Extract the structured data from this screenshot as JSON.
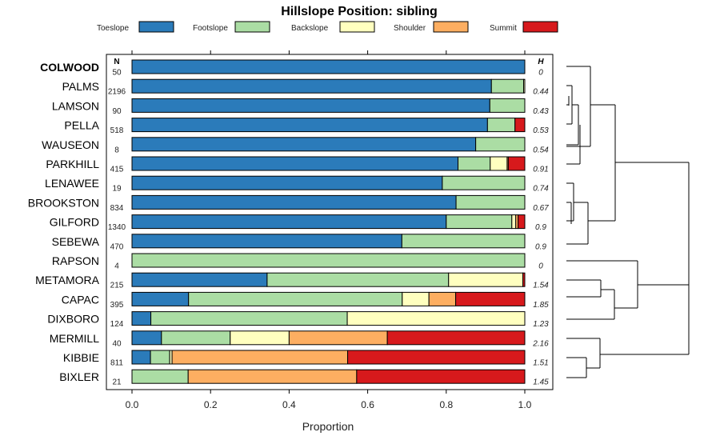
{
  "chart_data": {
    "type": "bar",
    "stacked": true,
    "orientation": "horizontal",
    "title": "Hillslope Position: sibling",
    "xlabel": "Proportion",
    "xlim": [
      0,
      1
    ],
    "x_ticks": [
      "0.0",
      "0.2",
      "0.4",
      "0.6",
      "0.8",
      "1.0"
    ],
    "n_header": "N",
    "h_header": "H",
    "legend": [
      {
        "name": "Toeslope",
        "color": "#2b7bba"
      },
      {
        "name": "Footslope",
        "color": "#abdda4"
      },
      {
        "name": "Backslope",
        "color": "#ffffbf"
      },
      {
        "name": "Shoulder",
        "color": "#fdae61"
      },
      {
        "name": "Summit",
        "color": "#d7191c"
      }
    ],
    "rows": [
      {
        "name": "COLWOOD",
        "bold": true,
        "n": "50",
        "h": "0",
        "values": [
          1.0,
          0,
          0,
          0,
          0
        ]
      },
      {
        "name": "PALMS",
        "n": "2196",
        "h": "0.44",
        "values": [
          0.915,
          0.082,
          0.003,
          0,
          0
        ]
      },
      {
        "name": "LAMSON",
        "n": "90",
        "h": "0.43",
        "values": [
          0.911,
          0.089,
          0,
          0,
          0
        ]
      },
      {
        "name": "PELLA",
        "n": "518",
        "h": "0.53",
        "values": [
          0.905,
          0.07,
          0,
          0,
          0.025
        ]
      },
      {
        "name": "WAUSEON",
        "n": "8",
        "h": "0.54",
        "values": [
          0.875,
          0.125,
          0,
          0,
          0
        ]
      },
      {
        "name": "PARKHILL",
        "n": "415",
        "h": "0.91",
        "values": [
          0.83,
          0.082,
          0.043,
          0.003,
          0.042
        ]
      },
      {
        "name": "LENAWEE",
        "n": "19",
        "h": "0.74",
        "values": [
          0.79,
          0.21,
          0,
          0,
          0
        ]
      },
      {
        "name": "BROOKSTON",
        "n": "834",
        "h": "0.67",
        "values": [
          0.825,
          0.175,
          0,
          0,
          0
        ]
      },
      {
        "name": "GILFORD",
        "n": "1340",
        "h": "0.9",
        "values": [
          0.8,
          0.167,
          0.01,
          0.006,
          0.017
        ]
      },
      {
        "name": "SEBEWA",
        "n": "470",
        "h": "0.9",
        "values": [
          0.687,
          0.313,
          0,
          0,
          0
        ]
      },
      {
        "name": "RAPSON",
        "n": "4",
        "h": "0",
        "values": [
          0,
          1.0,
          0,
          0,
          0
        ]
      },
      {
        "name": "METAMORA",
        "n": "215",
        "h": "1.54",
        "values": [
          0.344,
          0.462,
          0.189,
          0,
          0.005
        ]
      },
      {
        "name": "CAPAC",
        "n": "395",
        "h": "1.85",
        "values": [
          0.144,
          0.544,
          0.068,
          0.068,
          0.176
        ]
      },
      {
        "name": "DIXBORO",
        "n": "124",
        "h": "1.23",
        "values": [
          0.048,
          0.5,
          0.452,
          0,
          0
        ]
      },
      {
        "name": "MERMILL",
        "n": "40",
        "h": "2.16",
        "values": [
          0.075,
          0.175,
          0.15,
          0.25,
          0.35
        ]
      },
      {
        "name": "KIBBIE",
        "n": "811",
        "h": "1.51",
        "values": [
          0.047,
          0.049,
          0.006,
          0.447,
          0.451
        ]
      },
      {
        "name": "BIXLER",
        "n": "21",
        "h": "1.45",
        "values": [
          0,
          0.143,
          0,
          0.429,
          0.428
        ]
      }
    ]
  }
}
